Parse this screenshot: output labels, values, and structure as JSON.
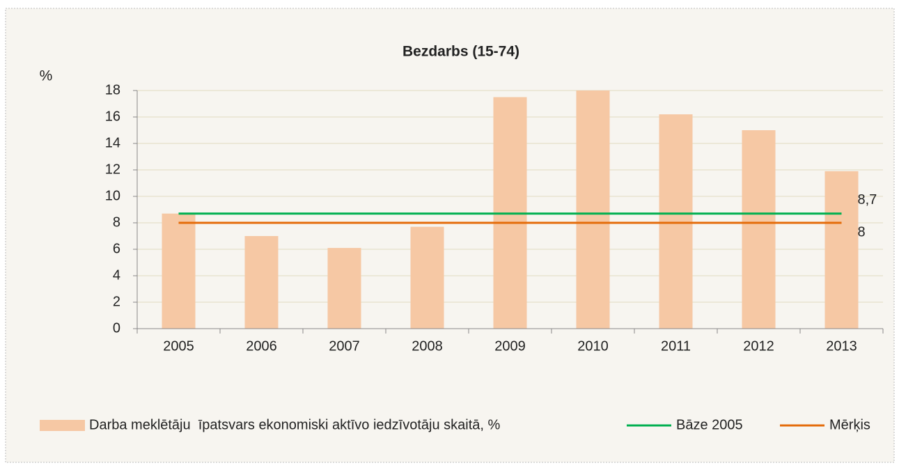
{
  "chart_data": {
    "type": "bar",
    "title": "Bezdarbs (15-74)",
    "y_label": "%",
    "categories": [
      "2005",
      "2006",
      "2007",
      "2008",
      "2009",
      "2010",
      "2011",
      "2012",
      "2013"
    ],
    "series": [
      {
        "name": "Darba meklētāju  īpatsvars ekonomiski aktīvo iedzīvotāju skaitā, %",
        "type": "bar",
        "color": "#f6c8a4",
        "values": [
          8.7,
          7.0,
          6.1,
          7.7,
          17.5,
          18.0,
          16.2,
          15.0,
          11.9
        ]
      },
      {
        "name": "Bāze 2005",
        "type": "line",
        "color": "#00b050",
        "values": [
          8.7,
          8.7,
          8.7,
          8.7,
          8.7,
          8.7,
          8.7,
          8.7,
          8.7
        ],
        "value_labels": [
          null,
          null,
          null,
          null,
          null,
          null,
          null,
          null,
          "8,7"
        ]
      },
      {
        "name": "Mērķis",
        "type": "line",
        "color": "#e46c0a",
        "values": [
          8,
          8,
          8,
          8,
          8,
          8,
          8,
          8,
          8
        ],
        "value_labels": [
          null,
          null,
          null,
          null,
          null,
          null,
          null,
          null,
          "8"
        ]
      }
    ],
    "ylim": [
      0,
      18
    ],
    "yticks": [
      0,
      2,
      4,
      6,
      8,
      10,
      12,
      14,
      16,
      18
    ],
    "grid": true,
    "legend": "bottom"
  }
}
